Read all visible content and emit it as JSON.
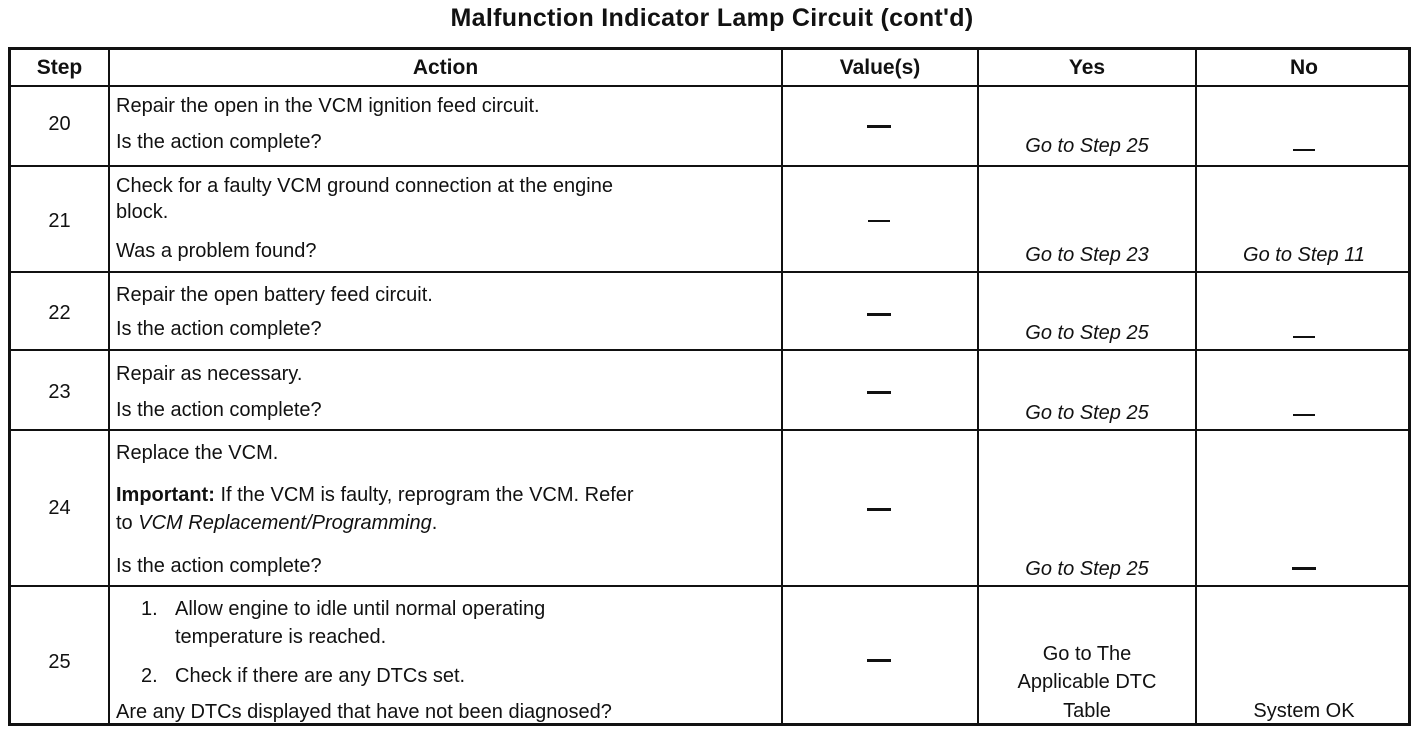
{
  "title": "Malfunction Indicator Lamp Circuit (cont'd)",
  "headers": {
    "step": "Step",
    "action": "Action",
    "values": "Value(s)",
    "yes": "Yes",
    "no": "No"
  },
  "rows": [
    {
      "step": "20",
      "action": [
        "Repair the open in the VCM ignition feed circuit.",
        "Is the action complete?"
      ],
      "value": "—",
      "yes": "Go to Step 25",
      "no": "—"
    },
    {
      "step": "21",
      "action": [
        "Check for a faulty VCM ground connection at the engine",
        "block.",
        "Was a problem found?"
      ],
      "value": "—",
      "yes": "Go to Step 23",
      "no": "Go to Step 11"
    },
    {
      "step": "22",
      "action": [
        "Repair the open battery feed circuit.",
        "Is the action complete?"
      ],
      "value": "—",
      "yes": "Go to Step 25",
      "no": "—"
    },
    {
      "step": "23",
      "action": [
        "Repair as necessary.",
        "Is the action complete?"
      ],
      "value": "—",
      "yes": "Go to Step 25",
      "no": "—"
    },
    {
      "step": "24",
      "action": [
        "Replace the VCM.",
        "Important:",
        "If the VCM is faulty, reprogram the VCM. Refer",
        "to",
        "VCM Replacement/Programming",
        ".",
        "Is the action complete?"
      ],
      "value": "—",
      "yes": "Go to Step 25",
      "no": "—"
    },
    {
      "step": "25",
      "action": [
        "1.",
        "Allow engine to idle until normal operating",
        "temperature is reached.",
        "2.",
        "Check if there are any DTCs set.",
        "Are any DTCs displayed that have not been diagnosed?"
      ],
      "value": "—",
      "yes": [
        "Go to The",
        "Applicable DTC",
        "Table"
      ],
      "no": "System OK"
    }
  ]
}
